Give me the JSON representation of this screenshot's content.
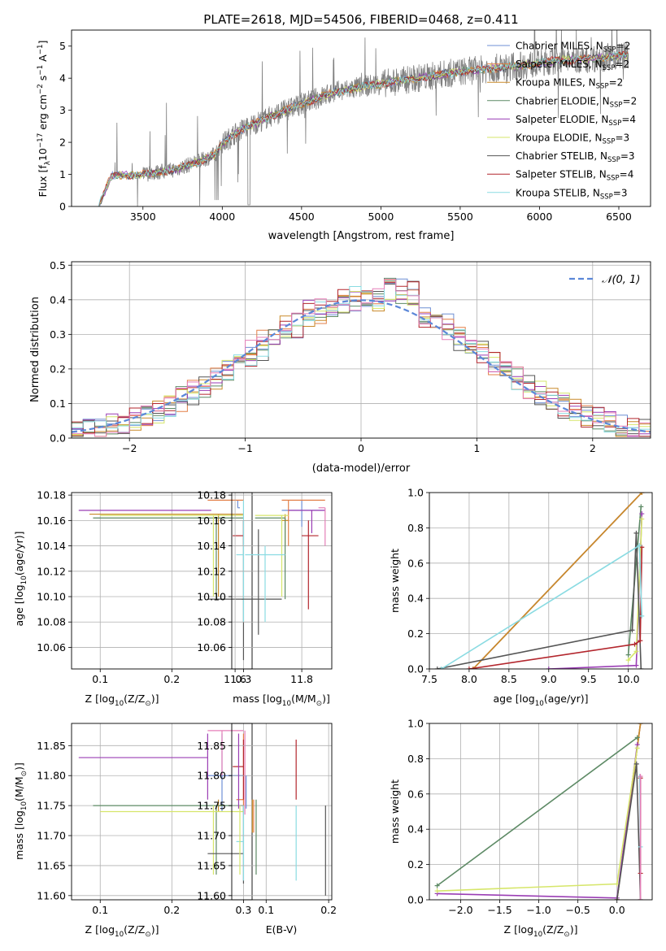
{
  "title": "PLATE=2618, MJD=54506, FIBERID=0468, z=0.411",
  "colors": {
    "Chabrier MILES": "#6f8fd4",
    "Salpeter MILES": "#e37f47",
    "Kroupa MILES": "#c98a2a",
    "Chabrier ELODIE": "#5d8a65",
    "Salpeter ELODIE": "#9a3db4",
    "Kroupa ELODIE": "#d6e66a",
    "Chabrier STELIB": "#555555",
    "Salpeter STELIB": "#b3262d",
    "Kroupa STELIB": "#8adbe2",
    "data": "#808080",
    "gauss": "#5b87d8",
    "extra_pink": "#e57fb8"
  },
  "chart_data": [
    {
      "id": "spectrum",
      "type": "line",
      "title": "PLATE=2618, MJD=54506, FIBERID=0468, z=0.411",
      "xlabel": "wavelength [Angstrom, rest frame]",
      "ylabel_parts": [
        "Flux [",
        "f",
        "λ",
        "10",
        "−17",
        " erg cm",
        "−2",
        " s",
        "−1",
        " A",
        "−1",
        "]"
      ],
      "xlim": [
        3050,
        6700
      ],
      "ylim": [
        0,
        5.5
      ],
      "xticks": [
        3500,
        4000,
        4500,
        5000,
        5500,
        6000,
        6500
      ],
      "yticks": [
        0,
        1,
        2,
        3,
        4,
        5
      ],
      "continuum_x": [
        3220,
        3300,
        3500,
        3700,
        3850,
        3950,
        4000,
        4100,
        4300,
        4500,
        4700,
        4900,
        5100,
        5300,
        5500,
        5700,
        5900,
        6100,
        6300,
        6500
      ],
      "continuum_y": [
        0.0,
        0.95,
        1.0,
        1.15,
        1.4,
        1.6,
        1.95,
        2.35,
        2.8,
        3.2,
        3.55,
        3.75,
        3.9,
        4.05,
        4.2,
        4.3,
        4.4,
        4.55,
        4.6,
        4.7
      ],
      "legend": [
        {
          "name": "Chabrier MILES",
          "label_prefix": "Chabrier MILES, N",
          "sub": "SSP",
          "suffix": "=2"
        },
        {
          "name": "Salpeter MILES",
          "label_prefix": "Salpeter MILES, N",
          "sub": "SSP",
          "suffix": "=2"
        },
        {
          "name": "Kroupa MILES",
          "label_prefix": "Kroupa MILES, N",
          "sub": "SSP",
          "suffix": "=2"
        },
        {
          "name": "Chabrier ELODIE",
          "label_prefix": "Chabrier ELODIE, N",
          "sub": "SSP",
          "suffix": "=2"
        },
        {
          "name": "Salpeter ELODIE",
          "label_prefix": "Salpeter ELODIE, N",
          "sub": "SSP",
          "suffix": "=4"
        },
        {
          "name": "Kroupa ELODIE",
          "label_prefix": "Kroupa ELODIE, N",
          "sub": "SSP",
          "suffix": "=3"
        },
        {
          "name": "Chabrier STELIB",
          "label_prefix": "Chabrier STELIB, N",
          "sub": "SSP",
          "suffix": "=3"
        },
        {
          "name": "Salpeter STELIB",
          "label_prefix": "Salpeter STELIB, N",
          "sub": "SSP",
          "suffix": "=4"
        },
        {
          "name": "Kroupa STELIB",
          "label_prefix": "Kroupa STELIB, N",
          "sub": "SSP",
          "suffix": "=3"
        }
      ],
      "legend_placement": "top-right"
    },
    {
      "id": "residuals",
      "type": "histogram",
      "xlabel": "(data-model)/error",
      "ylabel": "Normed distribution",
      "xlim": [
        -2.5,
        2.5
      ],
      "ylim": [
        0,
        0.51
      ],
      "xticks": [
        -2,
        -1,
        0,
        1,
        2
      ],
      "yticks": [
        0.0,
        0.1,
        0.2,
        0.3,
        0.4,
        0.5
      ],
      "grid": true,
      "bin_width": 0.1,
      "gauss_label": "𝒩(0, 1)",
      "legend_placement": "top-right"
    },
    {
      "id": "age_vs_Z",
      "type": "errorbar",
      "xlabel_parts": [
        "Z [log",
        "10",
        "(Z/Z",
        "⊙",
        ")]"
      ],
      "ylabel_parts": [
        "age  [log",
        "10",
        "(age/yr)]"
      ],
      "xlim": [
        0.06,
        0.312
      ],
      "ylim": [
        10.043,
        10.182
      ],
      "xticks": [
        0.1,
        0.2,
        0.3
      ],
      "yticks": [
        10.06,
        10.08,
        10.1,
        10.12,
        10.14,
        10.16,
        10.18
      ],
      "grid": true,
      "points": [
        {
          "s": "Chabrier MILES",
          "x": 0.292,
          "xe": [
            0.292,
            0.295
          ],
          "y": 10.17,
          "ye": [
            10.17,
            10.176
          ]
        },
        {
          "s": "Salpeter MILES",
          "x": 0.27,
          "xe": [
            0.25,
            0.3
          ],
          "y": 10.176,
          "ye": [
            10.176,
            10.176
          ]
        },
        {
          "s": "Kroupa MILES",
          "x": 0.265,
          "xe": [
            0.085,
            0.3
          ],
          "y": 10.165,
          "ye": [
            10.1,
            10.165
          ]
        },
        {
          "s": "Chabrier ELODIE",
          "x": 0.262,
          "xe": [
            0.09,
            0.3
          ],
          "y": 10.162,
          "ye": [
            10.098,
            10.162
          ]
        },
        {
          "s": "Salpeter ELODIE",
          "x": 0.255,
          "xe": [
            0.07,
            0.255
          ],
          "y": 10.168,
          "ye": [
            10.168,
            10.168
          ]
        },
        {
          "s": "Kroupa ELODIE",
          "x": 0.258,
          "xe": [
            0.1,
            0.3
          ],
          "y": 10.164,
          "ye": [
            10.1,
            10.164
          ]
        },
        {
          "s": "Chabrier STELIB",
          "x": 0.3,
          "xe": [
            0.25,
            0.3
          ],
          "y": 10.098,
          "ye": [
            10.05,
            10.16
          ]
        },
        {
          "s": "Salpeter STELIB",
          "x": 0.3,
          "xe": [
            0.285,
            0.3
          ],
          "y": 10.148,
          "ye": [
            10.14,
            10.16
          ]
        },
        {
          "s": "Kroupa STELIB",
          "x": 0.3,
          "xe": [
            0.29,
            0.3
          ],
          "y": 10.133,
          "ye": [
            10.08,
            10.176
          ]
        }
      ]
    },
    {
      "id": "age_vs_mass",
      "type": "errorbar",
      "xlabel_parts": [
        "mass [log",
        "10",
        "(M/M",
        "⊙",
        ")]"
      ],
      "xlim": [
        11.59,
        11.89
      ],
      "ylim": [
        10.043,
        10.182
      ],
      "xticks": [
        11.6,
        11.8
      ],
      "yticks": [
        10.06,
        10.08,
        10.1,
        10.12,
        10.14,
        10.16,
        10.18
      ],
      "grid": true,
      "points": [
        {
          "s": "Chabrier MILES",
          "x": 11.8,
          "xe": [
            11.74,
            11.87
          ],
          "y": 10.168,
          "ye": [
            10.155,
            10.176
          ]
        },
        {
          "s": "Salpeter MILES",
          "x": 11.76,
          "xe": [
            11.74,
            11.87
          ],
          "y": 10.176,
          "ye": [
            10.14,
            10.176
          ]
        },
        {
          "s": "Kroupa MILES",
          "x": 11.75,
          "xe": [
            11.74,
            11.76
          ],
          "y": 10.16,
          "ye": [
            10.14,
            10.165
          ]
        },
        {
          "s": "Chabrier ELODIE",
          "x": 11.75,
          "xe": [
            11.66,
            11.75
          ],
          "y": 10.162,
          "ye": [
            10.098,
            10.162
          ]
        },
        {
          "s": "Salpeter ELODIE",
          "x": 11.83,
          "xe": [
            11.76,
            11.87
          ],
          "y": 10.168,
          "ye": [
            10.15,
            10.168
          ]
        },
        {
          "s": "Kroupa ELODIE",
          "x": 11.74,
          "xe": [
            11.66,
            11.76
          ],
          "y": 10.164,
          "ye": [
            10.1,
            10.164
          ]
        },
        {
          "s": "Chabrier STELIB",
          "x": 11.67,
          "xe": [
            11.62,
            11.74
          ],
          "y": 10.098,
          "ye": [
            10.07,
            10.153
          ]
        },
        {
          "s": "Salpeter STELIB",
          "x": 11.82,
          "xe": [
            11.8,
            11.85
          ],
          "y": 10.148,
          "ye": [
            10.09,
            10.16
          ]
        },
        {
          "s": "Kroupa STELIB",
          "x": 11.69,
          "xe": [
            11.63,
            11.75
          ],
          "y": 10.133,
          "ye": [
            10.08,
            10.14
          ]
        },
        {
          "s": "extra_pink",
          "x": 11.87,
          "xe": [
            11.85,
            11.87
          ],
          "y": 10.17,
          "ye": [
            10.14,
            10.17
          ]
        }
      ]
    },
    {
      "id": "weight_vs_age",
      "type": "line",
      "xlabel_parts": [
        "age  [log",
        "10",
        "(age/yr)]"
      ],
      "ylabel": "mass weight",
      "xlim": [
        7.5,
        10.3
      ],
      "ylim": [
        0,
        1.0
      ],
      "xticks": [
        7.5,
        8.0,
        8.5,
        9.0,
        9.5,
        10.0
      ],
      "yticks": [
        0.0,
        0.2,
        0.4,
        0.6,
        0.8,
        1.0
      ],
      "grid": true,
      "series": [
        {
          "s": "Chabrier MILES",
          "x": [
            8.05,
            10.17
          ],
          "y": [
            0.0,
            1.0
          ]
        },
        {
          "s": "Salpeter MILES",
          "x": [
            8.05,
            10.17
          ],
          "y": [
            0.0,
            1.0
          ]
        },
        {
          "s": "Kroupa MILES",
          "x": [
            8.05,
            10.17
          ],
          "y": [
            0.0,
            1.0
          ]
        },
        {
          "s": "Chabrier ELODIE",
          "x": [
            10.0,
            10.16
          ],
          "y": [
            0.08,
            0.92
          ]
        },
        {
          "s": "Salpeter ELODIE",
          "x": [
            9.0,
            10.1,
            10.17
          ],
          "y": [
            0.0,
            0.02,
            0.88
          ]
        },
        {
          "s": "Kroupa ELODIE",
          "x": [
            10.0,
            10.1,
            10.17
          ],
          "y": [
            0.05,
            0.1,
            0.85
          ]
        },
        {
          "s": "Chabrier STELIB",
          "x": [
            7.6,
            10.05,
            10.1,
            10.16
          ],
          "y": [
            0.0,
            0.22,
            0.77,
            0.0
          ]
        },
        {
          "s": "Salpeter STELIB",
          "x": [
            8.0,
            10.08,
            10.15,
            10.17
          ],
          "y": [
            0.0,
            0.14,
            0.16,
            0.69
          ]
        },
        {
          "s": "Kroupa STELIB",
          "x": [
            7.65,
            10.14,
            10.17
          ],
          "y": [
            0.0,
            0.7,
            0.3
          ]
        }
      ]
    },
    {
      "id": "mass_vs_Z",
      "type": "errorbar",
      "xlabel_parts": [
        "Z [log",
        "10",
        "(Z/Z",
        "⊙",
        ")]"
      ],
      "ylabel_parts": [
        "mass [log",
        "10",
        "(M/M",
        "⊙",
        ")]"
      ],
      "xlim": [
        0.06,
        0.312
      ],
      "ylim": [
        11.593,
        11.887
      ],
      "xticks": [
        0.1,
        0.2,
        0.3
      ],
      "yticks": [
        11.6,
        11.65,
        11.7,
        11.75,
        11.8,
        11.85
      ],
      "grid": true,
      "points": [
        {
          "s": "Chabrier MILES",
          "x": 0.27,
          "xe": [
            0.25,
            0.3
          ],
          "y": 11.8,
          "ye": [
            11.74,
            11.87
          ]
        },
        {
          "s": "Salpeter MILES",
          "x": 0.3,
          "xe": [
            0.29,
            0.3
          ],
          "y": 11.76,
          "ye": [
            11.74,
            11.87
          ]
        },
        {
          "s": "Kroupa MILES",
          "x": 0.265,
          "xe": [
            0.26,
            0.27
          ],
          "y": 11.75,
          "ye": [
            11.74,
            11.76
          ]
        },
        {
          "s": "Chabrier ELODIE",
          "x": 0.262,
          "xe": [
            0.09,
            0.3
          ],
          "y": 11.75,
          "ye": [
            11.635,
            11.75
          ]
        },
        {
          "s": "Salpeter ELODIE",
          "x": 0.25,
          "xe": [
            0.07,
            0.25
          ],
          "y": 11.83,
          "ye": [
            11.76,
            11.87
          ]
        },
        {
          "s": "Kroupa ELODIE",
          "x": 0.258,
          "xe": [
            0.1,
            0.3
          ],
          "y": 11.74,
          "ye": [
            11.635,
            11.75
          ]
        },
        {
          "s": "Chabrier STELIB",
          "x": 0.3,
          "xe": [
            0.25,
            0.3
          ],
          "y": 11.67,
          "ye": [
            11.62,
            11.75
          ]
        },
        {
          "s": "Salpeter STELIB",
          "x": 0.3,
          "xe": [
            0.285,
            0.3
          ],
          "y": 11.815,
          "ye": [
            11.76,
            11.86
          ]
        },
        {
          "s": "Kroupa STELIB",
          "x": 0.3,
          "xe": [
            0.29,
            0.3
          ],
          "y": 11.69,
          "ye": [
            11.625,
            11.75
          ]
        },
        {
          "s": "extra_pink",
          "x": 0.27,
          "xe": [
            0.25,
            0.3
          ],
          "y": 11.875,
          "ye": [
            11.8,
            11.875
          ]
        }
      ]
    },
    {
      "id": "mass_vs_EBV",
      "type": "errorbar",
      "xlabel": "E(B-V)",
      "xlim": [
        0.045,
        0.205
      ],
      "ylim": [
        11.593,
        11.887
      ],
      "xticks": [
        0.1,
        0.2
      ],
      "yticks": [
        11.6,
        11.65,
        11.7,
        11.75,
        11.8,
        11.85
      ],
      "grid": true,
      "points": [
        {
          "s": "Chabrier MILES",
          "x": 0.068,
          "xe": [
            0.068,
            0.068
          ],
          "y": 11.8,
          "ye": [
            11.745,
            11.8
          ]
        },
        {
          "s": "Salpeter MILES",
          "x": 0.08,
          "xe": [
            0.08,
            0.08
          ],
          "y": 11.76,
          "ye": [
            11.705,
            11.76
          ]
        },
        {
          "s": "Kroupa MILES",
          "x": 0.078,
          "xe": [
            0.078,
            0.078
          ],
          "y": 11.75,
          "ye": [
            11.705,
            11.76
          ]
        },
        {
          "s": "Chabrier ELODIE",
          "x": 0.084,
          "xe": [
            0.084,
            0.084
          ],
          "y": 11.75,
          "ye": [
            11.635,
            11.76
          ]
        },
        {
          "s": "Salpeter ELODIE",
          "x": 0.056,
          "xe": [
            0.056,
            0.056
          ],
          "y": 11.83,
          "ye": [
            11.745,
            11.87
          ]
        },
        {
          "s": "Kroupa ELODIE",
          "x": 0.058,
          "xe": [
            0.058,
            0.058
          ],
          "y": 11.74,
          "ye": [
            11.635,
            11.75
          ]
        },
        {
          "s": "Chabrier STELIB",
          "x": 0.195,
          "xe": [
            0.195,
            0.195
          ],
          "y": 11.67,
          "ye": [
            11.6,
            11.75
          ]
        },
        {
          "s": "Salpeter STELIB",
          "x": 0.148,
          "xe": [
            0.148,
            0.148
          ],
          "y": 11.815,
          "ye": [
            11.76,
            11.86
          ]
        },
        {
          "s": "Kroupa STELIB",
          "x": 0.148,
          "xe": [
            0.148,
            0.148
          ],
          "y": 11.69,
          "ye": [
            11.625,
            11.75
          ]
        },
        {
          "s": "extra_pink",
          "x": 0.066,
          "xe": [
            0.066,
            0.066
          ],
          "y": 11.8,
          "ye": [
            11.735,
            11.875
          ]
        }
      ]
    },
    {
      "id": "weight_vs_Z",
      "type": "line",
      "xlabel_parts": [
        "Z [log",
        "10",
        "(Z/Z",
        "⊙",
        ")]"
      ],
      "ylabel": "mass weight",
      "xlim": [
        -2.4,
        0.45
      ],
      "ylim": [
        0,
        1.0
      ],
      "xticks": [
        -2.0,
        -1.5,
        -1.0,
        -0.5,
        0.0
      ],
      "yticks": [
        0.0,
        0.2,
        0.4,
        0.6,
        0.8,
        1.0
      ],
      "grid": true,
      "series": [
        {
          "s": "Chabrier MILES",
          "x": [
            0.0,
            0.3
          ],
          "y": [
            0.0,
            1.0
          ]
        },
        {
          "s": "Salpeter MILES",
          "x": [
            0.0,
            0.3
          ],
          "y": [
            0.0,
            1.0
          ]
        },
        {
          "s": "Kroupa MILES",
          "x": [
            0.0,
            0.3
          ],
          "y": [
            0.0,
            1.0
          ]
        },
        {
          "s": "Chabrier ELODIE",
          "x": [
            -2.3,
            0.26
          ],
          "y": [
            0.08,
            0.92
          ]
        },
        {
          "s": "Salpeter ELODIE",
          "x": [
            -2.3,
            0.0,
            0.26
          ],
          "y": [
            0.035,
            0.01,
            0.88
          ]
        },
        {
          "s": "Kroupa ELODIE",
          "x": [
            -2.3,
            0.0,
            0.26
          ],
          "y": [
            0.05,
            0.09,
            0.86
          ]
        },
        {
          "s": "Chabrier STELIB",
          "x": [
            0.0,
            0.25,
            0.3
          ],
          "y": [
            0.0,
            0.77,
            0.0
          ]
        },
        {
          "s": "Salpeter STELIB",
          "x": [
            0.3,
            0.3
          ],
          "y": [
            0.15,
            0.69
          ]
        },
        {
          "s": "Kroupa STELIB",
          "x": [
            0.29,
            0.3
          ],
          "y": [
            0.7,
            0.3
          ]
        },
        {
          "s": "extra_pink",
          "x": [
            0.3,
            0.3
          ],
          "y": [
            0.0,
            0.7
          ]
        }
      ]
    }
  ]
}
